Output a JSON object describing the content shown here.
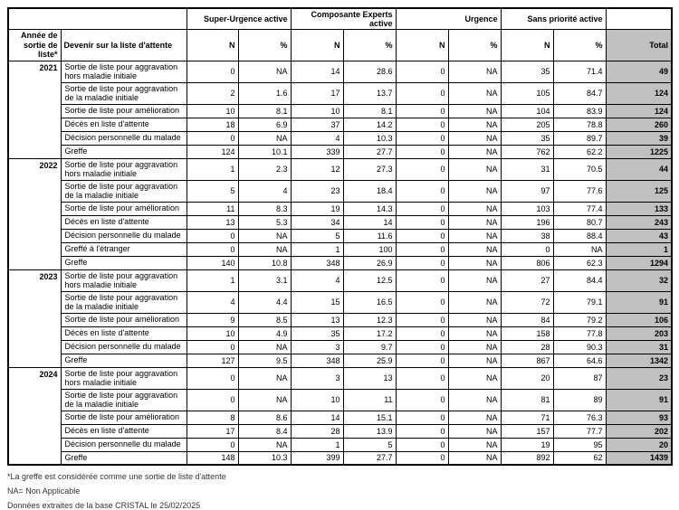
{
  "table": {
    "col_headers": {
      "year": "Année de sortie de liste*",
      "outcome": "Devenir sur la liste d'attente",
      "groups": [
        {
          "label": "Super-Urgence active"
        },
        {
          "label": "Composante Experts active"
        },
        {
          "label": "Urgence"
        },
        {
          "label": "Sans priorité active"
        }
      ],
      "n_label": "N",
      "pct_label": "%",
      "total_label": "Total"
    },
    "year_groups": [
      {
        "year": "2021",
        "rows": [
          {
            "label": "Sortie de liste pour aggravation hors maladie initiale",
            "values": [
              "0",
              "NA",
              "14",
              "28.6",
              "0",
              "NA",
              "35",
              "71.4"
            ],
            "total": "49"
          },
          {
            "label": "Sortie de liste pour aggravation de la maladie initiale",
            "values": [
              "2",
              "1.6",
              "17",
              "13.7",
              "0",
              "NA",
              "105",
              "84.7"
            ],
            "total": "124"
          },
          {
            "label": "Sortie de liste pour amélioration",
            "values": [
              "10",
              "8.1",
              "10",
              "8.1",
              "0",
              "NA",
              "104",
              "83.9"
            ],
            "total": "124"
          },
          {
            "label": "Décès en liste d'attente",
            "values": [
              "18",
              "6.9",
              "37",
              "14.2",
              "0",
              "NA",
              "205",
              "78.8"
            ],
            "total": "260"
          },
          {
            "label": "Décision personnelle du malade",
            "values": [
              "0",
              "NA",
              "4",
              "10.3",
              "0",
              "NA",
              "35",
              "89.7"
            ],
            "total": "39"
          },
          {
            "label": "Greffe",
            "values": [
              "124",
              "10.1",
              "339",
              "27.7",
              "0",
              "NA",
              "762",
              "62.2"
            ],
            "total": "1225"
          }
        ]
      },
      {
        "year": "2022",
        "rows": [
          {
            "label": "Sortie de liste pour aggravation hors maladie initiale",
            "values": [
              "1",
              "2.3",
              "12",
              "27.3",
              "0",
              "NA",
              "31",
              "70.5"
            ],
            "total": "44"
          },
          {
            "label": "Sortie de liste pour aggravation de la maladie initiale",
            "values": [
              "5",
              "4",
              "23",
              "18.4",
              "0",
              "NA",
              "97",
              "77.6"
            ],
            "total": "125"
          },
          {
            "label": "Sortie de liste pour amélioration",
            "values": [
              "11",
              "8.3",
              "19",
              "14.3",
              "0",
              "NA",
              "103",
              "77.4"
            ],
            "total": "133"
          },
          {
            "label": "Décès en liste d'attente",
            "values": [
              "13",
              "5.3",
              "34",
              "14",
              "0",
              "NA",
              "196",
              "80.7"
            ],
            "total": "243"
          },
          {
            "label": "Décision personnelle du malade",
            "values": [
              "0",
              "NA",
              "5",
              "11.6",
              "0",
              "NA",
              "38",
              "88.4"
            ],
            "total": "43"
          },
          {
            "label": "Greffé à l'étranger",
            "values": [
              "0",
              "NA",
              "1",
              "100",
              "0",
              "NA",
              "0",
              "NA"
            ],
            "total": "1"
          },
          {
            "label": "Greffe",
            "values": [
              "140",
              "10.8",
              "348",
              "26.9",
              "0",
              "NA",
              "806",
              "62.3"
            ],
            "total": "1294"
          }
        ]
      },
      {
        "year": "2023",
        "rows": [
          {
            "label": "Sortie de liste pour aggravation hors maladie initiale",
            "values": [
              "1",
              "3.1",
              "4",
              "12.5",
              "0",
              "NA",
              "27",
              "84.4"
            ],
            "total": "32"
          },
          {
            "label": "Sortie de liste pour aggravation de la maladie initiale",
            "values": [
              "4",
              "4.4",
              "15",
              "16.5",
              "0",
              "NA",
              "72",
              "79.1"
            ],
            "total": "91"
          },
          {
            "label": "Sortie de liste pour amélioration",
            "values": [
              "9",
              "8.5",
              "13",
              "12.3",
              "0",
              "NA",
              "84",
              "79.2"
            ],
            "total": "106"
          },
          {
            "label": "Décès en liste d'attente",
            "values": [
              "10",
              "4.9",
              "35",
              "17.2",
              "0",
              "NA",
              "158",
              "77.8"
            ],
            "total": "203"
          },
          {
            "label": "Décision personnelle du malade",
            "values": [
              "0",
              "NA",
              "3",
              "9.7",
              "0",
              "NA",
              "28",
              "90.3"
            ],
            "total": "31"
          },
          {
            "label": "Greffe",
            "values": [
              "127",
              "9.5",
              "348",
              "25.9",
              "0",
              "NA",
              "867",
              "64.6"
            ],
            "total": "1342"
          }
        ]
      },
      {
        "year": "2024",
        "rows": [
          {
            "label": "Sortie de liste pour aggravation hors maladie initiale",
            "values": [
              "0",
              "NA",
              "3",
              "13",
              "0",
              "NA",
              "20",
              "87"
            ],
            "total": "23"
          },
          {
            "label": "Sortie de liste pour aggravation de la maladie initiale",
            "values": [
              "0",
              "NA",
              "10",
              "11",
              "0",
              "NA",
              "81",
              "89"
            ],
            "total": "91"
          },
          {
            "label": "Sortie de liste pour amélioration",
            "values": [
              "8",
              "8.6",
              "14",
              "15.1",
              "0",
              "NA",
              "71",
              "76.3"
            ],
            "total": "93"
          },
          {
            "label": "Décès en liste d'attente",
            "values": [
              "17",
              "8.4",
              "28",
              "13.9",
              "0",
              "NA",
              "157",
              "77.7"
            ],
            "total": "202"
          },
          {
            "label": "Décision personnelle du malade",
            "values": [
              "0",
              "NA",
              "1",
              "5",
              "0",
              "NA",
              "19",
              "95"
            ],
            "total": "20"
          },
          {
            "label": "Greffe",
            "values": [
              "148",
              "10.3",
              "399",
              "27.7",
              "0",
              "NA",
              "892",
              "62"
            ],
            "total": "1439"
          }
        ]
      }
    ]
  },
  "footnotes": [
    "*La greffe est considérée comme une sortie de liste d'attente",
    "NA= Non Applicable",
    "Données extraites de la base CRISTAL le 25/02/2025"
  ],
  "colors": {
    "total_bg": "#c0c0c0",
    "border": "#000000"
  }
}
